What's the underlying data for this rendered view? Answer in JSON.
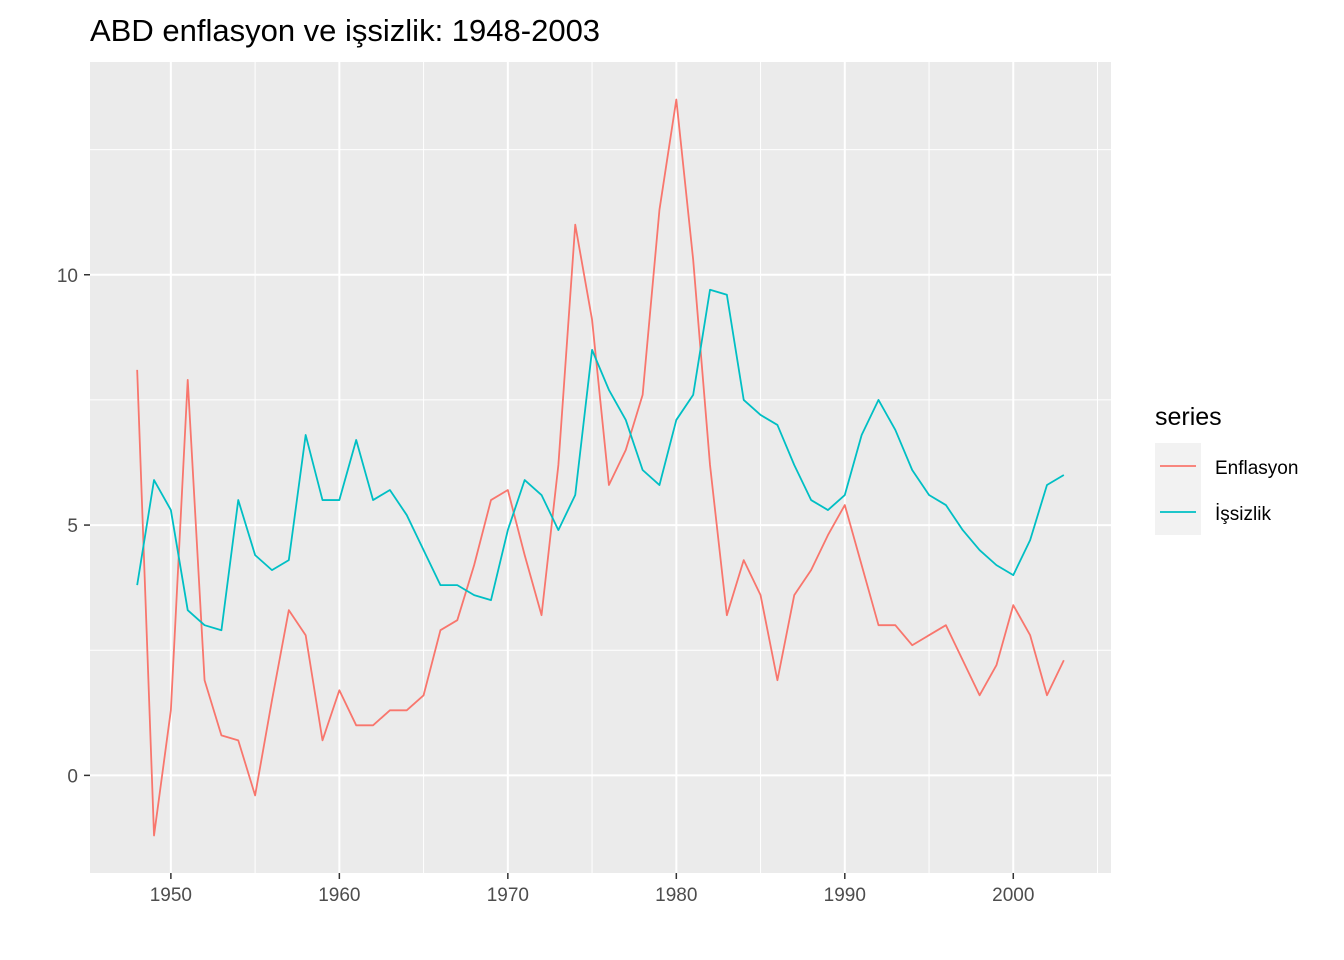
{
  "chart_data": {
    "type": "line",
    "title": "ABD enflasyon ve işsizlik: 1948-2003",
    "xlabel": "",
    "ylabel": "",
    "xlim": [
      1945.2,
      2005.8
    ],
    "ylim": [
      -1.95,
      14.25
    ],
    "x_ticks": [
      1950,
      1960,
      1970,
      1980,
      1990,
      2000
    ],
    "x_tick_labels": [
      "1950",
      "1960",
      "1970",
      "1980",
      "1990",
      "2000"
    ],
    "y_ticks": [
      0,
      5,
      10
    ],
    "y_tick_labels": [
      "0",
      "5",
      "10"
    ],
    "grid": true,
    "legend": {
      "title": "series",
      "placement": "right"
    },
    "x": [
      1948,
      1949,
      1950,
      1951,
      1952,
      1953,
      1954,
      1955,
      1956,
      1957,
      1958,
      1959,
      1960,
      1961,
      1962,
      1963,
      1964,
      1965,
      1966,
      1967,
      1968,
      1969,
      1970,
      1971,
      1972,
      1973,
      1974,
      1975,
      1976,
      1977,
      1978,
      1979,
      1980,
      1981,
      1982,
      1983,
      1984,
      1985,
      1986,
      1987,
      1988,
      1989,
      1990,
      1991,
      1992,
      1993,
      1994,
      1995,
      1996,
      1997,
      1998,
      1999,
      2000,
      2001,
      2002,
      2003
    ],
    "series": [
      {
        "name": "Enflasyon",
        "color": "#F8766D",
        "values": [
          8.1,
          -1.2,
          1.3,
          7.9,
          1.9,
          0.8,
          0.7,
          -0.4,
          1.5,
          3.3,
          2.8,
          0.7,
          1.7,
          1.0,
          1.0,
          1.3,
          1.3,
          1.6,
          2.9,
          3.1,
          4.2,
          5.5,
          5.7,
          4.4,
          3.2,
          6.2,
          11.0,
          9.1,
          5.8,
          6.5,
          7.6,
          11.3,
          13.5,
          10.3,
          6.2,
          3.2,
          4.3,
          3.6,
          1.9,
          3.6,
          4.1,
          4.8,
          5.4,
          4.2,
          3.0,
          3.0,
          2.6,
          2.8,
          3.0,
          2.3,
          1.6,
          2.2,
          3.4,
          2.8,
          1.6,
          2.3
        ]
      },
      {
        "name": "İşsizlik",
        "color": "#00BFC4",
        "values": [
          3.8,
          5.9,
          5.3,
          3.3,
          3.0,
          2.9,
          5.5,
          4.4,
          4.1,
          4.3,
          6.8,
          5.5,
          5.5,
          6.7,
          5.5,
          5.7,
          5.2,
          4.5,
          3.8,
          3.8,
          3.6,
          3.5,
          4.9,
          5.9,
          5.6,
          4.9,
          5.6,
          8.5,
          7.7,
          7.1,
          6.1,
          5.8,
          7.1,
          7.6,
          9.7,
          9.6,
          7.5,
          7.2,
          7.0,
          6.2,
          5.5,
          5.3,
          5.6,
          6.8,
          7.5,
          6.9,
          6.1,
          5.6,
          5.4,
          4.9,
          4.5,
          4.2,
          4.0,
          4.7,
          5.8,
          6.0
        ]
      }
    ]
  }
}
